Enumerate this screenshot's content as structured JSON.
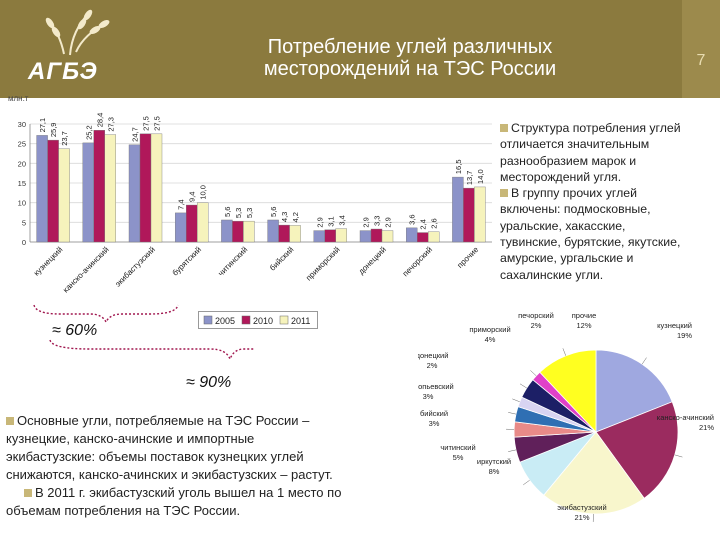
{
  "header": {
    "logo": "АГБЭ",
    "title_line1": "Потребление углей различных",
    "title_line2": "месторождений на ТЭС России",
    "slide_number": "7"
  },
  "right_text": {
    "p1_lines": [
      "Структура потребления углей",
      "отличается значительным",
      "разнообразием марок и",
      "месторождений угля."
    ],
    "p2_lines": [
      "В группу прочих углей",
      "включены: подмосковные,",
      "уральские, хакасские,",
      "тувинские, бурятские, якутские,",
      "амурские, ургальские и",
      "сахалинские угли."
    ]
  },
  "brackets": {
    "approx60": "≈ 60%",
    "approx90": "≈ 90%"
  },
  "bottom_text": {
    "p1_lines": [
      "Основные угли, потребляемые на ТЭС России –",
      "кузнецкие, канско-ачинские и импортные",
      "экибастузские: объемы поставок кузнецких углей",
      "снижаются, канско-ачинских и экибастузских – растут."
    ],
    "p2_lines": [
      "В 2011 г. экибастузский уголь вышел на 1 место по",
      "объемам потребления на ТЭС России."
    ]
  },
  "chart_data": [
    {
      "type": "bar",
      "ylabel": "млн.т",
      "ylim": [
        0,
        30
      ],
      "yticks": [
        "0",
        "5",
        "10",
        "15",
        "20",
        "25",
        "30"
      ],
      "categories": [
        "кузнецкий",
        "канско-ачинский",
        "экибастузский",
        "бурятский",
        "читинский",
        "бийский",
        "приморский",
        "донецкий",
        "печорский",
        "прочие"
      ],
      "series": [
        {
          "name": "2005",
          "color": "#8c93c9",
          "values": [
            27.1,
            25.2,
            24.7,
            7.4,
            5.6,
            5.6,
            2.9,
            2.9,
            3.6,
            16.5
          ]
        },
        {
          "name": "2010",
          "color": "#b0185a",
          "values": [
            25.9,
            28.4,
            27.5,
            9.4,
            5.3,
            4.3,
            3.1,
            3.3,
            2.4,
            13.7
          ]
        },
        {
          "name": "2011",
          "color": "#f6f3bc",
          "values": [
            23.7,
            27.3,
            27.5,
            10.0,
            5.3,
            4.2,
            3.4,
            2.9,
            2.6,
            14.0
          ]
        }
      ],
      "value_labels": [
        [
          "27,1",
          "25,9",
          "23,7"
        ],
        [
          "25,2",
          "28,4",
          "27,3"
        ],
        [
          "24,7",
          "27,5",
          "27,5"
        ],
        [
          "7,4",
          "9,4",
          "10,0"
        ],
        [
          "5,6",
          "5,3",
          "5,3"
        ],
        [
          "5,6",
          "4,3",
          "4,2"
        ],
        [
          "2,9",
          "3,1",
          "3,4"
        ],
        [
          "2,9",
          "3,3",
          "2,9"
        ],
        [
          "3,6",
          "2,4",
          "2,6"
        ],
        [
          "16,5",
          "13,7",
          "14,0"
        ]
      ],
      "legend": [
        "2005",
        "2010",
        "2011"
      ]
    },
    {
      "type": "pie",
      "slices": [
        {
          "label": "кузнецкий",
          "pct_label": "19%",
          "value": 19,
          "color": "#9fa8e0"
        },
        {
          "label": "канско-ачинский",
          "pct_label": "21%",
          "value": 21,
          "color": "#9b2b5f"
        },
        {
          "label": "экибастузский",
          "pct_label": "21%",
          "value": 21,
          "color": "#f8f6cc"
        },
        {
          "label": "иркутский",
          "pct_label": "8%",
          "value": 8,
          "color": "#c9ecf5"
        },
        {
          "label": "читинский",
          "pct_label": "5%",
          "value": 5,
          "color": "#60205a"
        },
        {
          "label": "бийский",
          "pct_label": "3%",
          "value": 3,
          "color": "#e88a88"
        },
        {
          "label": "прокопьевский",
          "pct_label": "3%",
          "value": 3,
          "color": "#2f6fb3"
        },
        {
          "label": "донецкий",
          "pct_label": "2%",
          "value": 2,
          "color": "#d8d4f2"
        },
        {
          "label": "приморский",
          "pct_label": "4%",
          "value": 4,
          "color": "#1c1f66"
        },
        {
          "label": "печорский",
          "pct_label": "2%",
          "value": 2,
          "color": "#e040c8"
        },
        {
          "label": "прочие",
          "pct_label": "12%",
          "value": 12,
          "color": "#ffff20"
        }
      ]
    }
  ]
}
